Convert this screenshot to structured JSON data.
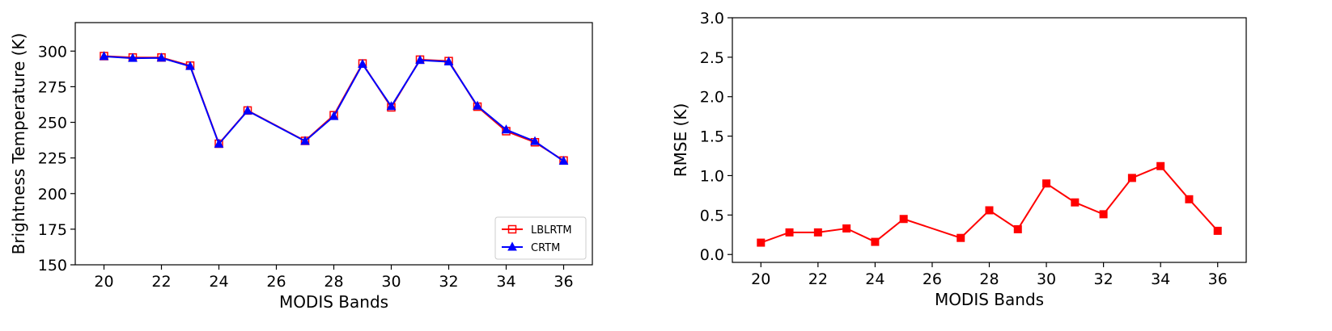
{
  "chart_data": [
    {
      "type": "line",
      "xlabel": "MODIS Bands",
      "ylabel": "Brightness Temperature (K)",
      "xlim": [
        19,
        37
      ],
      "ylim": [
        150,
        320
      ],
      "xticks": [
        20,
        22,
        24,
        26,
        28,
        30,
        32,
        34,
        36
      ],
      "yticks": [
        150,
        175,
        200,
        225,
        250,
        275,
        300
      ],
      "legend_position": "lower-right",
      "series": [
        {
          "name": "LBLRTM",
          "color": "#ff0000",
          "marker": "open-square",
          "x": [
            20,
            21,
            22,
            23,
            24,
            25,
            27,
            28,
            29,
            30,
            31,
            32,
            33,
            34,
            35,
            36
          ],
          "y": [
            296.5,
            295.5,
            295.5,
            289.8,
            235.0,
            258.3,
            237.0,
            255.0,
            291.3,
            260.5,
            294.0,
            293.0,
            261.0,
            243.8,
            236.0,
            223.2
          ]
        },
        {
          "name": "CRTM",
          "color": "#0000ff",
          "marker": "filled-triangle",
          "x": [
            20,
            21,
            22,
            23,
            24,
            25,
            27,
            28,
            29,
            30,
            31,
            32,
            33,
            34,
            35,
            36
          ],
          "y": [
            296.3,
            295.0,
            295.2,
            289.3,
            234.8,
            258.1,
            236.8,
            254.2,
            290.8,
            261.2,
            293.6,
            292.5,
            261.5,
            244.8,
            236.6,
            222.8
          ]
        }
      ]
    },
    {
      "type": "line",
      "xlabel": "MODIS Bands",
      "ylabel": "RMSE (K)",
      "xlim": [
        19,
        37
      ],
      "ylim": [
        -0.1,
        3.0
      ],
      "xticks": [
        20,
        22,
        24,
        26,
        28,
        30,
        32,
        34,
        36
      ],
      "yticks": [
        "0.0",
        "0.5",
        "1.0",
        "1.5",
        "2.0",
        "2.5",
        "3.0"
      ],
      "series": [
        {
          "color": "#ff0000",
          "marker": "filled-square",
          "x": [
            20,
            21,
            22,
            23,
            24,
            25,
            27,
            28,
            29,
            30,
            31,
            32,
            33,
            34,
            35,
            36
          ],
          "y": [
            0.15,
            0.28,
            0.28,
            0.33,
            0.16,
            0.45,
            0.21,
            0.56,
            0.32,
            0.9,
            0.66,
            0.51,
            0.97,
            1.12,
            0.7,
            0.3
          ]
        }
      ]
    }
  ]
}
